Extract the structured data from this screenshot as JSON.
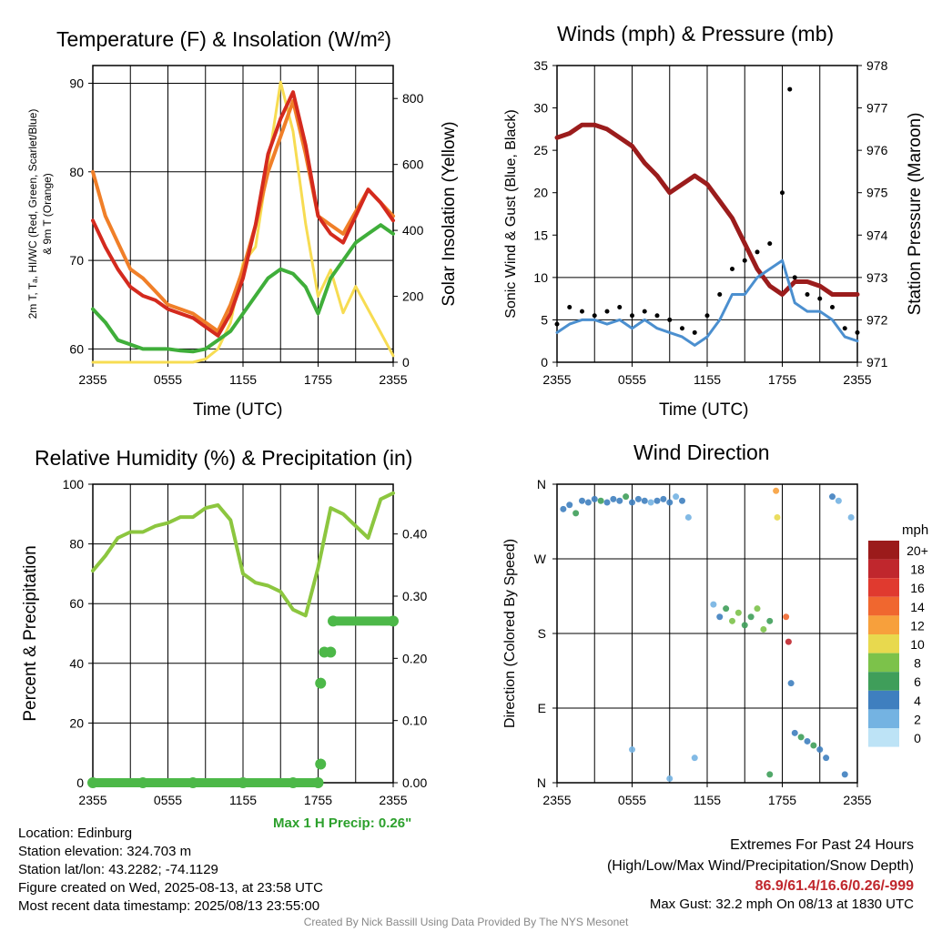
{
  "panels": {
    "temp": {
      "title": "Temperature (F) & Insolation (W/m²)",
      "xlabel": "Time (UTC)",
      "ylabel_left_line1": "2m T, Tₐ, HI/WC (Red, Green, Scarlet/Blue)",
      "ylabel_left_line2": "& 9m T (Orange)",
      "ylabel_right": "Solar Insolation (Yellow)"
    },
    "wind": {
      "title": "Winds (mph) & Pressure (mb)",
      "xlabel": "Time (UTC)",
      "ylabel_left": "Sonic Wind & Gust (Blue, Black)",
      "ylabel_right": "Station Pressure (Maroon)"
    },
    "rh": {
      "title": "Relative Humidity (%) & Precipitation (in)",
      "ylabel_left": "Percent & Precipitation",
      "max_precip_label": "Max 1 H Precip: 0.26\""
    },
    "dir": {
      "title": "Wind Direction",
      "ylabel_left": "Direction (Colored By Speed)",
      "legend_title": "mph",
      "legend_labels": [
        "20+",
        "18",
        "16",
        "14",
        "12",
        "10",
        "8",
        "6",
        "4",
        "2",
        "0"
      ],
      "legend_colors": [
        "#9b1b1b",
        "#c0272d",
        "#e03a2f",
        "#f0672f",
        "#f7a03c",
        "#e8d94e",
        "#7cc24a",
        "#3f9e5a",
        "#3f7fbf",
        "#74b3e2",
        "#bde3f6"
      ]
    }
  },
  "info": {
    "location": "Location: Edinburg",
    "elevation": "Station elevation: 324.703 m",
    "latlon": "Station lat/lon: 43.2282; -74.1129",
    "created": "Figure created on Wed, 2025-08-13, at 23:58 UTC",
    "recent": "Most recent data timestamp: 2025/08/13 23:55:00"
  },
  "extremes": {
    "heading": "Extremes For Past 24 Hours",
    "subheading": "(High/Low/Max Wind/Precipitation/Snow Depth)",
    "values": "86.9/61.4/16.6/0.26/-999",
    "gust": "Max Gust: 32.2 mph On 08/13 at 1830 UTC"
  },
  "credit": "Created By Nick Bassill Using Data Provided By The NYS Mesonet",
  "colors": {
    "red": "#d42a1e",
    "green": "#3fae3a",
    "orange": "#f07f28",
    "yellow": "#f7dc52",
    "maroon": "#9b1c1c",
    "blue": "#4b8fcf",
    "rh_green": "#8cc63f",
    "precip_green": "#4cb848",
    "max_precip_text": "#2ca02c",
    "extreme_values": "#c0272d",
    "credit_gray": "#888888"
  },
  "chart_data": [
    {
      "type": "line",
      "title": "Temperature (F) & Insolation (W/m2)",
      "xlabel": "Time (UTC)",
      "x_ticks": [
        "2355",
        "0555",
        "1155",
        "1755",
        "2355"
      ],
      "x_range_hours": [
        0,
        24
      ],
      "ylim_left": [
        58.5,
        92
      ],
      "yticks_left": [
        60,
        70,
        80,
        90
      ],
      "ylim_right": [
        0,
        900
      ],
      "yticks_right": [
        0,
        200,
        400,
        600,
        800
      ],
      "x_hours": [
        0,
        1,
        2,
        3,
        4,
        5,
        6,
        7,
        8,
        9,
        10,
        11,
        12,
        13,
        14,
        15,
        16,
        17,
        18,
        19,
        20,
        21,
        22,
        23,
        24
      ],
      "series": [
        {
          "color": "red",
          "axis": "left",
          "values": [
            74.5,
            71.5,
            69,
            67,
            66,
            65.5,
            64.5,
            64,
            63.5,
            62.5,
            61.5,
            64,
            68,
            74,
            82,
            86,
            89,
            83,
            75,
            73,
            72,
            75,
            78,
            76.5,
            74.5
          ]
        },
        {
          "color": "orange",
          "axis": "left",
          "values": [
            80,
            75,
            72,
            69,
            68,
            66.5,
            65,
            64.5,
            64,
            63,
            62,
            65,
            69,
            74,
            80,
            84,
            88,
            82,
            75,
            74,
            73,
            75.5,
            78,
            76.5,
            75
          ]
        },
        {
          "color": "green",
          "axis": "left",
          "values": [
            64.5,
            63,
            61,
            60.5,
            60,
            60,
            60,
            59.8,
            59.7,
            60,
            61,
            62,
            64,
            66,
            68,
            69,
            68.5,
            67,
            64,
            68,
            70,
            72,
            73,
            74,
            73
          ]
        },
        {
          "color": "yellow",
          "axis": "right",
          "values": [
            0,
            0,
            0,
            0,
            0,
            0,
            0,
            0,
            0,
            10,
            40,
            120,
            300,
            350,
            600,
            850,
            700,
            420,
            200,
            280,
            150,
            230,
            160,
            90,
            20
          ]
        }
      ]
    },
    {
      "type": "line",
      "title": "Winds (mph) & Pressure (mb)",
      "xlabel": "Time (UTC)",
      "x_ticks": [
        "2355",
        "0555",
        "1155",
        "1755",
        "2355"
      ],
      "ylim_left": [
        0,
        35
      ],
      "yticks_left": [
        0,
        5,
        10,
        15,
        20,
        25,
        30,
        35
      ],
      "ylim_right": [
        971,
        978
      ],
      "yticks_right": [
        971,
        972,
        973,
        974,
        975,
        976,
        977,
        978
      ],
      "x_hours": [
        0,
        1,
        2,
        3,
        4,
        5,
        6,
        7,
        8,
        9,
        10,
        11,
        12,
        13,
        14,
        15,
        16,
        17,
        18,
        19,
        20,
        21,
        22,
        23,
        24
      ],
      "series": [
        {
          "color": "maroon",
          "axis": "right",
          "name": "Station Pressure",
          "values": [
            976.3,
            976.4,
            976.6,
            976.6,
            976.5,
            976.3,
            976.1,
            975.7,
            975.4,
            975.0,
            975.2,
            975.4,
            975.2,
            974.8,
            974.4,
            973.8,
            973.2,
            972.8,
            972.6,
            972.9,
            972.9,
            972.8,
            972.6,
            972.6,
            972.6
          ]
        },
        {
          "color": "blue",
          "axis": "left",
          "name": "Sonic Wind",
          "values": [
            3.5,
            4.5,
            5,
            5,
            4.5,
            5,
            4,
            5,
            4,
            3.5,
            3,
            2,
            3,
            5,
            8,
            8,
            10,
            11,
            12,
            7,
            6,
            6,
            5,
            3,
            2.5
          ]
        },
        {
          "color": "black",
          "axis": "left",
          "name": "Gust",
          "style": "dots",
          "values": [
            4.5,
            6.5,
            6,
            5.5,
            6,
            6.5,
            5.5,
            6,
            5.5,
            5,
            4,
            3.5,
            5.5,
            8,
            11,
            12,
            13,
            14,
            20,
            10,
            8,
            7.5,
            6.5,
            4,
            3.5
          ]
        }
      ],
      "max_gust_point": {
        "x_hour": 18.6,
        "y": 32.2
      }
    },
    {
      "type": "line",
      "title": "Relative Humidity (%) & Precipitation (in)",
      "x_ticks": [
        "2355",
        "0555",
        "1155",
        "1755",
        "2355"
      ],
      "ylim_left": [
        0,
        100
      ],
      "yticks_left": [
        0,
        20,
        40,
        60,
        80,
        100
      ],
      "ylim_right": [
        0,
        0.48
      ],
      "yticks_right": [
        "0.00",
        "0.10",
        "0.20",
        "0.30",
        "0.40"
      ],
      "x_hours": [
        0,
        1,
        2,
        3,
        4,
        5,
        6,
        7,
        8,
        9,
        10,
        11,
        12,
        13,
        14,
        15,
        16,
        17,
        18,
        19,
        20,
        21,
        22,
        23,
        24
      ],
      "series": [
        {
          "color": "rh_green",
          "axis": "left",
          "name": "RH",
          "values": [
            71,
            76,
            82,
            84,
            84,
            86,
            87,
            89,
            89,
            92,
            93,
            88,
            70,
            67,
            66,
            64,
            58,
            56,
            72,
            92,
            90,
            86,
            82,
            95,
            97
          ]
        }
      ],
      "precip": {
        "axis": "right",
        "points": [
          {
            "x_hour": 0,
            "y": 0
          },
          {
            "x_hour": 4,
            "y": 0
          },
          {
            "x_hour": 8,
            "y": 0
          },
          {
            "x_hour": 12,
            "y": 0
          },
          {
            "x_hour": 16,
            "y": 0
          },
          {
            "x_hour": 18,
            "y": 0
          },
          {
            "x_hour": 18.2,
            "y": 0.03
          },
          {
            "x_hour": 18.2,
            "y": 0.16
          },
          {
            "x_hour": 18.5,
            "y": 0.21
          },
          {
            "x_hour": 19,
            "y": 0.21
          },
          {
            "x_hour": 19.2,
            "y": 0.26
          },
          {
            "x_hour": 24,
            "y": 0.26
          }
        ]
      }
    },
    {
      "type": "scatter",
      "title": "Wind Direction",
      "x_ticks": [
        "2355",
        "0555",
        "1155",
        "1755",
        "2355"
      ],
      "y_ticks": [
        "N",
        "W",
        "S",
        "E",
        "N"
      ],
      "y_degrees": [
        360,
        270,
        180,
        90,
        0
      ],
      "points": [
        {
          "x_hour": 0.5,
          "dir": 330,
          "speed": 3
        },
        {
          "x_hour": 1,
          "dir": 335,
          "speed": 4
        },
        {
          "x_hour": 1.5,
          "dir": 325,
          "speed": 5
        },
        {
          "x_hour": 2,
          "dir": 340,
          "speed": 4
        },
        {
          "x_hour": 2.5,
          "dir": 338,
          "speed": 3
        },
        {
          "x_hour": 3,
          "dir": 342,
          "speed": 4
        },
        {
          "x_hour": 3.5,
          "dir": 340,
          "speed": 5
        },
        {
          "x_hour": 4,
          "dir": 338,
          "speed": 4
        },
        {
          "x_hour": 4.5,
          "dir": 342,
          "speed": 3
        },
        {
          "x_hour": 5,
          "dir": 340,
          "speed": 4
        },
        {
          "x_hour": 5.5,
          "dir": 345,
          "speed": 5
        },
        {
          "x_hour": 6,
          "dir": 338,
          "speed": 4
        },
        {
          "x_hour": 6.5,
          "dir": 342,
          "speed": 3
        },
        {
          "x_hour": 7,
          "dir": 340,
          "speed": 4
        },
        {
          "x_hour": 7.5,
          "dir": 338,
          "speed": 2
        },
        {
          "x_hour": 8,
          "dir": 340,
          "speed": 3
        },
        {
          "x_hour": 8.5,
          "dir": 342,
          "speed": 4
        },
        {
          "x_hour": 9,
          "dir": 338,
          "speed": 3
        },
        {
          "x_hour": 9.5,
          "dir": 345,
          "speed": 2
        },
        {
          "x_hour": 10,
          "dir": 340,
          "speed": 3
        },
        {
          "x_hour": 10.5,
          "dir": 320,
          "speed": 1
        },
        {
          "x_hour": 12.5,
          "dir": 215,
          "speed": 2
        },
        {
          "x_hour": 13,
          "dir": 200,
          "speed": 4
        },
        {
          "x_hour": 13.5,
          "dir": 210,
          "speed": 6
        },
        {
          "x_hour": 14,
          "dir": 195,
          "speed": 7
        },
        {
          "x_hour": 14.5,
          "dir": 205,
          "speed": 8
        },
        {
          "x_hour": 15,
          "dir": 190,
          "speed": 6
        },
        {
          "x_hour": 15.5,
          "dir": 200,
          "speed": 5
        },
        {
          "x_hour": 16,
          "dir": 210,
          "speed": 7
        },
        {
          "x_hour": 16.5,
          "dir": 185,
          "speed": 8
        },
        {
          "x_hour": 17,
          "dir": 195,
          "speed": 6
        },
        {
          "x_hour": 17.5,
          "dir": 352,
          "speed": 12
        },
        {
          "x_hour": 17.6,
          "dir": 320,
          "speed": 10
        },
        {
          "x_hour": 18.3,
          "dir": 200,
          "speed": 14
        },
        {
          "x_hour": 18.5,
          "dir": 170,
          "speed": 18
        },
        {
          "x_hour": 18.7,
          "dir": 120,
          "speed": 4
        },
        {
          "x_hour": 19,
          "dir": 60,
          "speed": 4
        },
        {
          "x_hour": 19.5,
          "dir": 55,
          "speed": 5
        },
        {
          "x_hour": 20,
          "dir": 50,
          "speed": 4
        },
        {
          "x_hour": 20.5,
          "dir": 45,
          "speed": 6
        },
        {
          "x_hour": 21,
          "dir": 40,
          "speed": 3
        },
        {
          "x_hour": 21.5,
          "dir": 30,
          "speed": 4
        },
        {
          "x_hour": 22,
          "dir": 345,
          "speed": 3
        },
        {
          "x_hour": 22.5,
          "dir": 340,
          "speed": 2
        },
        {
          "x_hour": 23,
          "dir": 10,
          "speed": 3
        },
        {
          "x_hour": 23.5,
          "dir": 320,
          "speed": 2
        },
        {
          "x_hour": 6,
          "dir": 40,
          "speed": 1
        },
        {
          "x_hour": 9,
          "dir": 5,
          "speed": 2
        },
        {
          "x_hour": 11,
          "dir": 30,
          "speed": 1
        },
        {
          "x_hour": 17,
          "dir": 10,
          "speed": 6
        }
      ]
    }
  ]
}
